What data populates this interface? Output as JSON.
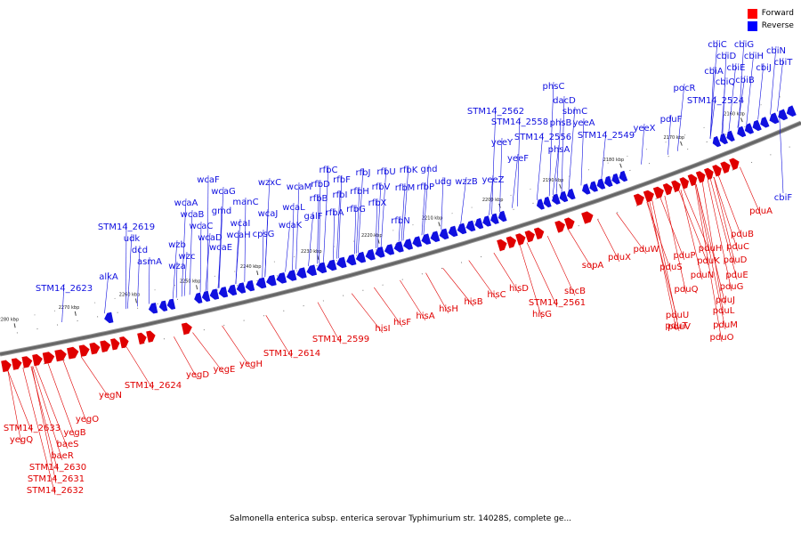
{
  "legend": {
    "forward_label": "Forward",
    "reverse_label": "Reverse",
    "forward_color": "#ff0000",
    "reverse_color": "#0000ff"
  },
  "caption": "Salmonella enterica subsp. enterica serovar Typhimurium str. 14028S, complete ge...",
  "colors": {
    "forward": "#e00000",
    "reverse": "#1010e0",
    "backbone": "#666666",
    "ticks": "#444444"
  },
  "kbp_ticks": [
    {
      "label": "2280 kbp",
      "kbp": 2280
    },
    {
      "label": "2270 kbp",
      "kbp": 2270
    },
    {
      "label": "2260 kbp",
      "kbp": 2260
    },
    {
      "label": "2250 kbp",
      "kbp": 2250
    },
    {
      "label": "2240 kbp",
      "kbp": 2240
    },
    {
      "label": "2230 kbp",
      "kbp": 2230
    },
    {
      "label": "2220 kbp",
      "kbp": 2220
    },
    {
      "label": "2210 kbp",
      "kbp": 2210
    },
    {
      "label": "2200 kbp",
      "kbp": 2200
    },
    {
      "label": "2190 kbp",
      "kbp": 2190
    },
    {
      "label": "2180 kbp",
      "kbp": 2180
    },
    {
      "label": "2170 kbp",
      "kbp": 2170
    },
    {
      "label": "2160 kbp",
      "kbp": 2160
    }
  ],
  "reverse_genes": [
    "alkA",
    "STM14_2623",
    "STM14_2619",
    "udk",
    "dcd",
    "asmA",
    "wzb",
    "wzc",
    "wza",
    "wcaA",
    "wcaB",
    "wcaC",
    "wcaD",
    "wcaE",
    "wcaF",
    "wcaG",
    "gmd",
    "manC",
    "wcaI",
    "wcaH",
    "cpsG",
    "wzxC",
    "wcaJ",
    "wcaL",
    "wcaK",
    "wcaM",
    "rfbD",
    "rfbC",
    "rfbF",
    "rfbB",
    "galF",
    "rfbI",
    "rfbA",
    "rfbJ",
    "rfbH",
    "rfbG",
    "rfbU",
    "rfbV",
    "rfbX",
    "rfbK",
    "rfbM",
    "rfbN",
    "gnd",
    "rfbP",
    "udg",
    "wzzB",
    "yeeZ",
    "yeeY",
    "yeeF",
    "STM14_2562",
    "STM14_2558",
    "STM14_2556",
    "phsC",
    "dacD",
    "sbmC",
    "phsB",
    "yeeA",
    "phsA",
    "STM14_2549",
    "yeeX",
    "pocR",
    "STM14_2524",
    "pduF",
    "cbiC",
    "cbiG",
    "cbiD",
    "cbiH",
    "cbiN",
    "cbiA",
    "cbiE",
    "cbiJ",
    "cbiQ",
    "cbiB",
    "cbiT",
    "cbiF"
  ],
  "forward_genes": [
    "STM14_2633",
    "yegQ",
    "yegB",
    "yegO",
    "baeS",
    "baeR",
    "STM14_2630",
    "STM14_2631",
    "STM14_2632",
    "yegN",
    "STM14_2624",
    "yegD",
    "yegE",
    "yegH",
    "STM14_2614",
    "STM14_2599",
    "hisI",
    "hisF",
    "hisA",
    "hisH",
    "hisB",
    "hisC",
    "hisD",
    "hisG",
    "STM14_2561",
    "sbcB",
    "sopA",
    "pduX",
    "pduW",
    "pduT",
    "pduS",
    "pduQ",
    "pduU",
    "pduV",
    "pduP",
    "pduN",
    "pduK",
    "pduH",
    "pduC",
    "pduD",
    "pduJ",
    "pduE",
    "pduG",
    "pduL",
    "pduM",
    "pduO",
    "pduB",
    "pduA"
  ]
}
